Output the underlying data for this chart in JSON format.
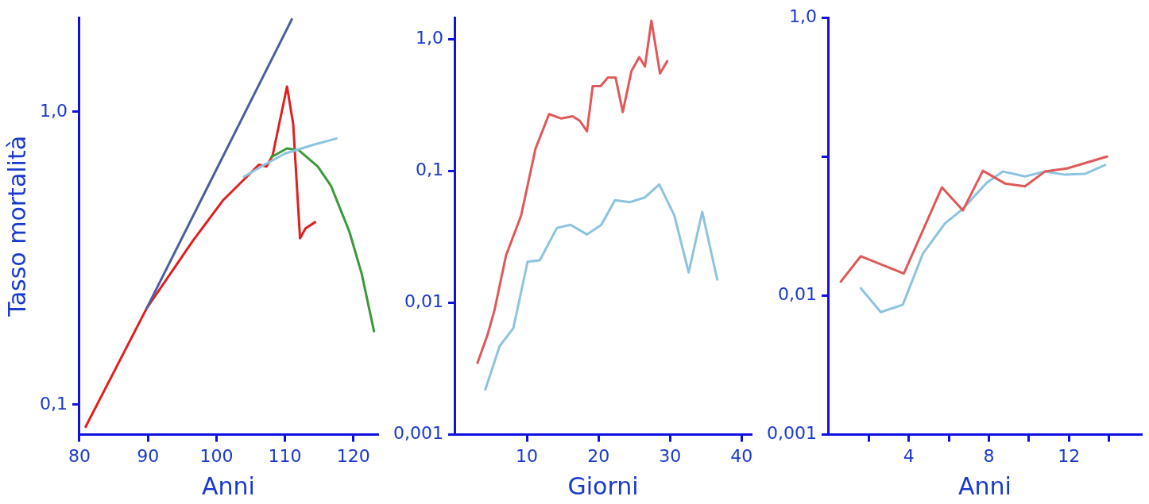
{
  "chart_data": [
    {
      "type": "line",
      "xlabel": "Anni",
      "ylabel": "Tasso mortalità",
      "log": "y",
      "grid": false,
      "legend": false,
      "marker": "none",
      "line_style": "solid",
      "xlim": [
        80,
        123.5
      ],
      "xticks": [
        80,
        90,
        100,
        110,
        120
      ],
      "ylim": [
        0.079,
        2.1
      ],
      "yticks": [
        {
          "value": 0.1,
          "label": "0,1"
        },
        {
          "value": 1,
          "label": "1,0"
        }
      ],
      "series": [
        {
          "color": "#4a5fa0",
          "x": [
            89.8,
            111
          ],
          "values": [
            0.213,
            2.07
          ]
        },
        {
          "color": "#8cc4e0",
          "x": [
            104,
            107,
            110,
            114,
            117.5
          ],
          "values": [
            0.6,
            0.66,
            0.72,
            0.77,
            0.81
          ]
        },
        {
          "color": "#3a9a3a",
          "x": [
            108,
            110.3,
            112,
            114.8,
            116.7,
            119.4,
            121.2,
            123
          ],
          "values": [
            0.7,
            0.75,
            0.74,
            0.65,
            0.56,
            0.39,
            0.28,
            0.178
          ]
        },
        {
          "color": "#e02020",
          "x": [
            80.9,
            89.8,
            96.6,
            101,
            106.2,
            107.3,
            108.2,
            110.3,
            111.2,
            112.2,
            113,
            114.4
          ],
          "values": [
            0.084,
            0.213,
            0.364,
            0.5,
            0.66,
            0.65,
            0.71,
            1.22,
            0.91,
            0.37,
            0.4,
            0.42
          ]
        }
      ]
    },
    {
      "type": "line",
      "xlabel": "Giorni",
      "log": "y",
      "grid": false,
      "legend": false,
      "marker": "none",
      "line_style": "solid",
      "xlim": [
        0,
        41.3
      ],
      "xticks": [
        10,
        20,
        30,
        40
      ],
      "ylim": [
        0.001,
        1.46
      ],
      "yticks": [
        {
          "value": 0.001,
          "label": "0,001"
        },
        {
          "value": 0.01,
          "label": "0,01"
        },
        {
          "value": 0.1,
          "label": "0,1"
        },
        {
          "value": 1,
          "label": "1,0"
        }
      ],
      "series": [
        {
          "color": "#e05858",
          "x": [
            3.1,
            4.5,
            5.5,
            7.1,
            9.2,
            11.2,
            13.1,
            14.8,
            16.4,
            17.4,
            18.4,
            19.2,
            20.3,
            21.3,
            22.4,
            23.4,
            24.6,
            25.7,
            26.5,
            27.4,
            28.6,
            29.6
          ],
          "values": [
            0.0035,
            0.0057,
            0.0089,
            0.023,
            0.046,
            0.147,
            0.27,
            0.25,
            0.26,
            0.24,
            0.2,
            0.44,
            0.44,
            0.51,
            0.51,
            0.28,
            0.57,
            0.73,
            0.62,
            1.38,
            0.55,
            0.68
          ]
        },
        {
          "color": "#8cc4e0",
          "x": [
            4.2,
            6.2,
            8.1,
            10.1,
            11.8,
            14.2,
            16.1,
            18.4,
            20.4,
            22.3,
            24.4,
            26.5,
            28.5,
            30.6,
            32.6,
            34.5,
            36.6
          ],
          "values": [
            0.0022,
            0.0047,
            0.0064,
            0.0205,
            0.021,
            0.037,
            0.039,
            0.033,
            0.039,
            0.06,
            0.058,
            0.063,
            0.079,
            0.046,
            0.017,
            0.049,
            0.015
          ]
        }
      ]
    },
    {
      "type": "line",
      "xlabel": "Anni",
      "log": "y",
      "grid": false,
      "legend": false,
      "marker": "none",
      "line_style": "solid",
      "xlim": [
        0,
        15.6
      ],
      "xticks": [
        {
          "value": 2,
          "label": null
        },
        4,
        {
          "value": 6,
          "label": null
        },
        8,
        {
          "value": 10,
          "label": null
        },
        12,
        {
          "value": 14,
          "label": null
        }
      ],
      "ylim": [
        0.001,
        1
      ],
      "yticks": [
        {
          "value": 0.001,
          "label": "0,001"
        },
        {
          "value": 0.01,
          "label": "0,01"
        },
        {
          "value": 0.1,
          "label": null
        },
        {
          "value": 1,
          "label": "1,0"
        }
      ],
      "series": [
        {
          "color": "#e05858",
          "x": [
            0.6,
            1.6,
            3.75,
            5.65,
            6.7,
            7.7,
            8.8,
            9.8,
            10.8,
            11.9,
            13.9
          ],
          "values": [
            0.0126,
            0.0192,
            0.0144,
            0.06,
            0.041,
            0.079,
            0.064,
            0.061,
            0.078,
            0.082,
            0.1
          ]
        },
        {
          "color": "#8cc4e0",
          "x": [
            1.6,
            2.6,
            3.7,
            4.7,
            5.8,
            6.7,
            7.9,
            8.7,
            9.8,
            10.8,
            11.8,
            12.8,
            13.8
          ],
          "values": [
            0.0113,
            0.0076,
            0.0086,
            0.02,
            0.033,
            0.042,
            0.065,
            0.078,
            0.072,
            0.078,
            0.074,
            0.075,
            0.087
          ]
        }
      ]
    }
  ]
}
